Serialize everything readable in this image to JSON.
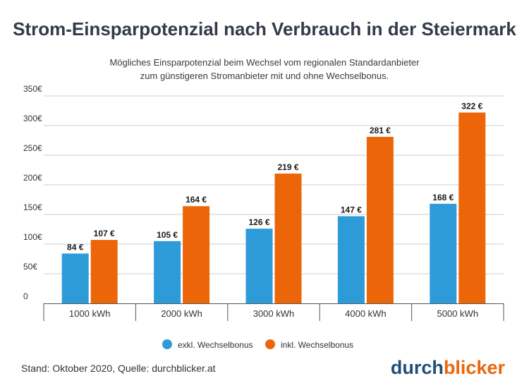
{
  "colors": {
    "series_excl": "#2e9bd9",
    "series_incl": "#ec6609",
    "title": "#333a4a",
    "grid": "#cccccc",
    "logo_dark": "#1f4e79",
    "logo_orange": "#ec6609"
  },
  "chart_data": {
    "type": "bar",
    "title": "Strom-Einsparpotenzial nach Verbrauch in der Steiermark",
    "subtitle_lines": [
      "Mögliches Einsparpotenzial beim Wechsel vom regionalen Standardanbieter",
      "zum günstigeren Stromanbieter mit und ohne Wechselbonus."
    ],
    "categories": [
      "1000 kWh",
      "2000 kWh",
      "3000 kWh",
      "4000 kWh",
      "5000 kWh"
    ],
    "series": [
      {
        "name": "exkl. Wechselbonus",
        "values": [
          84,
          105,
          126,
          147,
          168
        ],
        "labels": [
          "84 €",
          "105 €",
          "126 €",
          "147 €",
          "168 €"
        ]
      },
      {
        "name": "inkl. Wechselbonus",
        "values": [
          107,
          164,
          219,
          281,
          322
        ],
        "labels": [
          "107 €",
          "164 €",
          "219 €",
          "281 €",
          "322 €"
        ]
      }
    ],
    "ylim": [
      0,
      350
    ],
    "yticks": [
      0,
      50,
      100,
      150,
      200,
      250,
      300,
      350
    ],
    "ytick_labels": [
      "0",
      "50€",
      "100€",
      "150€",
      "200€",
      "250€",
      "300€",
      "350€"
    ],
    "grid": true,
    "legend_position": "bottom-center",
    "xlabel": "",
    "ylabel": ""
  },
  "footer": {
    "source": "Stand: Oktober 2020, Quelle: durchblicker.at",
    "logo_part1": "durch",
    "logo_part2": "blicker"
  }
}
